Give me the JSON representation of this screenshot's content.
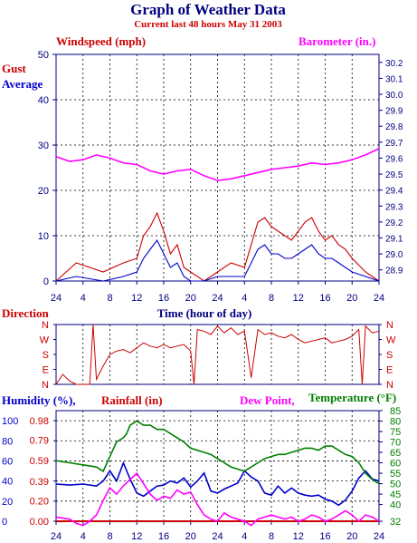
{
  "chart_data": [
    {
      "type": "line",
      "title": "Graph of Weather Data",
      "subtitle": "Current last 48 hours May 31 2003",
      "left_axis_title": "Windspeed (mph)",
      "right_axis_title": "Barometer (in.)",
      "legend": [
        "Gust",
        "Average"
      ],
      "xlabel": "Time (hour of day)",
      "x_ticks": [
        "24",
        "4",
        "8",
        "12",
        "16",
        "20",
        "24",
        "4",
        "8",
        "12",
        "16",
        "20",
        "24"
      ],
      "ylim": [
        0,
        50
      ],
      "y_ticks": [
        "0",
        "10",
        "20",
        "30",
        "40",
        "50"
      ],
      "y2lim": [
        28.83,
        30.25
      ],
      "y2_ticks": [
        "28.9",
        "29.0",
        "29.1",
        "29.2",
        "29.3",
        "29.4",
        "29.5",
        "29.6",
        "29.7",
        "29.8",
        "29.9",
        "30.0",
        "30.1",
        "30.2"
      ],
      "grid": true,
      "series": [
        {
          "name": "Gust",
          "color": "#cc0000",
          "axis": "left",
          "hours": [
            0,
            3,
            7,
            10,
            12,
            13,
            14,
            15,
            16,
            17,
            18,
            19,
            20,
            22,
            24,
            26,
            28,
            30,
            31,
            32,
            33,
            34,
            35,
            36,
            37,
            38,
            39,
            40,
            41,
            42,
            43,
            44,
            46,
            48
          ],
          "values": [
            0,
            4,
            2,
            4,
            5,
            10,
            12,
            15,
            11,
            6,
            8,
            3,
            2,
            0,
            2,
            4,
            3,
            13,
            14,
            12,
            11,
            10,
            9,
            11,
            13,
            14,
            11,
            9,
            10,
            8,
            7,
            5,
            2,
            0
          ]
        },
        {
          "name": "Average",
          "color": "#0000cc",
          "axis": "left",
          "hours": [
            0,
            3,
            7,
            10,
            12,
            13,
            14,
            15,
            16,
            17,
            18,
            19,
            20,
            22,
            24,
            26,
            28,
            30,
            31,
            32,
            33,
            34,
            35,
            36,
            37,
            38,
            39,
            40,
            41,
            42,
            43,
            44,
            46,
            48
          ],
          "values": [
            0,
            1,
            0,
            1,
            2,
            5,
            7,
            9,
            6,
            3,
            4,
            1,
            0,
            0,
            1,
            1,
            1,
            7,
            8,
            6,
            6,
            5,
            5,
            6,
            7,
            8,
            6,
            5,
            5,
            4,
            3,
            2,
            1,
            0
          ]
        },
        {
          "name": "Barometer",
          "color": "#ff00ff",
          "axis": "right",
          "hours": [
            0,
            2,
            4,
            6,
            8,
            10,
            12,
            14,
            16,
            18,
            20,
            22,
            24,
            26,
            28,
            30,
            32,
            34,
            36,
            38,
            40,
            42,
            44,
            46,
            48
          ],
          "values": [
            29.61,
            29.58,
            29.59,
            29.62,
            29.6,
            29.57,
            29.56,
            29.52,
            29.5,
            29.52,
            29.53,
            29.49,
            29.46,
            29.47,
            29.49,
            29.51,
            29.53,
            29.54,
            29.55,
            29.57,
            29.56,
            29.57,
            29.59,
            29.62,
            29.66
          ]
        }
      ]
    },
    {
      "type": "line",
      "title": "Direction",
      "y_ticks": [
        "N",
        "W",
        "S",
        "E",
        "N"
      ],
      "y_ticks_right": [
        "N",
        "W",
        "S",
        "E",
        "N"
      ],
      "ylim": [
        0,
        360
      ],
      "series": [
        {
          "name": "Direction",
          "color": "#cc0000",
          "hours": [
            0,
            1,
            2,
            3,
            4,
            5,
            5.5,
            6,
            7,
            8,
            9,
            10,
            11,
            12,
            13,
            14,
            15,
            16,
            17,
            18,
            19,
            20,
            20.5,
            21,
            22,
            23,
            24,
            25,
            26,
            27,
            28,
            29,
            30,
            31,
            32,
            33,
            34,
            35,
            36,
            37,
            38,
            39,
            40,
            41,
            42,
            43,
            44,
            45,
            45.5,
            46,
            47,
            48
          ],
          "values": [
            0,
            60,
            20,
            0,
            0,
            0,
            360,
            30,
            110,
            180,
            200,
            210,
            190,
            220,
            250,
            230,
            220,
            240,
            220,
            230,
            240,
            200,
            0,
            330,
            320,
            300,
            350,
            310,
            340,
            300,
            320,
            40,
            330,
            300,
            310,
            290,
            280,
            300,
            270,
            250,
            260,
            270,
            280,
            250,
            260,
            270,
            290,
            330,
            0,
            350,
            310,
            320
          ]
        }
      ]
    },
    {
      "type": "line",
      "title": "",
      "legend": [
        "Humidity (%),",
        "Rainfall (in)",
        "Dew Point,",
        "Temperature (°F)"
      ],
      "x_ticks": [
        "24",
        "4",
        "8",
        "12",
        "16",
        "20",
        "24",
        "4",
        "8",
        "12",
        "16",
        "20",
        "24"
      ],
      "left_ticks_humidity": [
        "0",
        "20",
        "40",
        "60",
        "80",
        "100"
      ],
      "left_ticks_rain": [
        "0.00",
        "0.20",
        "0.39",
        "0.59",
        "0.79",
        "0.98"
      ],
      "right_ticks_temp": [
        "32",
        "40",
        "45",
        "50",
        "55",
        "60",
        "65",
        "70",
        "75",
        "80",
        "85"
      ],
      "ylim_humidity": [
        0,
        110
      ],
      "ylim_temp": [
        32,
        85
      ],
      "series": [
        {
          "name": "Humidity",
          "color": "#0000cc",
          "axis": "humidity",
          "hours": [
            0,
            2,
            4,
            6,
            7,
            8,
            9,
            10,
            10.5,
            11,
            12,
            13,
            14,
            15,
            16,
            17,
            18,
            19,
            20,
            21,
            22,
            23,
            24,
            25,
            26,
            27,
            28,
            29,
            30,
            31,
            32,
            33,
            34,
            35,
            36,
            37,
            38,
            39,
            40,
            41,
            42,
            43,
            44,
            45,
            46,
            47,
            48
          ],
          "values": [
            37,
            36,
            37,
            35,
            40,
            50,
            40,
            58,
            50,
            42,
            28,
            25,
            30,
            35,
            36,
            40,
            38,
            43,
            34,
            40,
            48,
            30,
            28,
            32,
            35,
            38,
            50,
            44,
            40,
            28,
            26,
            35,
            28,
            33,
            28,
            26,
            25,
            26,
            22,
            20,
            16,
            21,
            30,
            43,
            50,
            42,
            40
          ]
        },
        {
          "name": "Rainfall",
          "color": "#cc0000",
          "axis": "rain",
          "hours": [
            0,
            48
          ],
          "values": [
            0.0,
            0.0
          ]
        },
        {
          "name": "Dew Point",
          "color": "#ff00ff",
          "axis": "temp",
          "hours": [
            0,
            2,
            3,
            4,
            5,
            6,
            7,
            8,
            9,
            10,
            11,
            12,
            13,
            14,
            15,
            16,
            17,
            18,
            19,
            20,
            21,
            22,
            23,
            24,
            25,
            26,
            27,
            28,
            29,
            30,
            31,
            32,
            33,
            34,
            35,
            36,
            37,
            38,
            39,
            40,
            41,
            42,
            43,
            44,
            45,
            46,
            47,
            48
          ],
          "values": [
            34,
            33,
            31,
            30,
            32,
            35,
            42,
            48,
            45,
            49,
            52,
            55,
            50,
            45,
            42,
            44,
            43,
            47,
            45,
            46,
            40,
            35,
            33,
            32,
            36,
            34,
            33,
            32,
            30,
            33,
            34,
            35,
            34,
            33,
            34,
            32,
            33,
            35,
            34,
            32,
            33,
            35,
            37,
            35,
            32,
            35,
            34,
            32
          ]
        },
        {
          "name": "Temperature",
          "color": "#008000",
          "axis": "temp",
          "hours": [
            0,
            2,
            4,
            6,
            7,
            8,
            9,
            10,
            10.5,
            11,
            12,
            13,
            14,
            15,
            16,
            17,
            18,
            19,
            20,
            21,
            22,
            23,
            24,
            25,
            26,
            27,
            28,
            29,
            30,
            31,
            32,
            33,
            34,
            35,
            36,
            37,
            38,
            39,
            40,
            41,
            42,
            43,
            44,
            45,
            46,
            47,
            48
          ],
          "values": [
            61,
            60,
            59,
            58,
            56,
            63,
            70,
            72,
            74,
            78,
            80,
            78,
            78,
            76,
            76,
            74,
            72,
            70,
            67,
            66,
            65,
            64,
            62,
            60,
            58,
            57,
            56,
            58,
            60,
            62,
            63,
            64,
            64,
            65,
            66,
            67,
            67,
            66,
            68,
            68,
            66,
            64,
            63,
            60,
            55,
            52,
            50
          ]
        }
      ]
    }
  ]
}
